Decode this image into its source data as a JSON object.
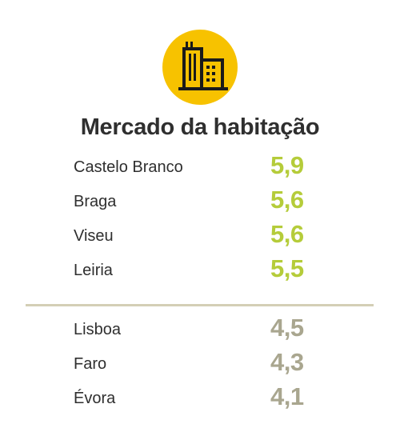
{
  "title": "Mercado da habitação",
  "colors": {
    "badge": "#f7c200",
    "icon": "#1a1a1a",
    "top_values": "#b5cc3a",
    "bottom_values": "#a9a68f",
    "divider": "#d4cfb6"
  },
  "icon": "buildings-icon",
  "top_group": [
    {
      "name": "Castelo Branco",
      "value": "5,9"
    },
    {
      "name": "Braga",
      "value": "5,6"
    },
    {
      "name": "Viseu",
      "value": "5,6"
    },
    {
      "name": "Leiria",
      "value": "5,5"
    }
  ],
  "bottom_group": [
    {
      "name": "Lisboa",
      "value": "4,5"
    },
    {
      "name": "Faro",
      "value": "4,3"
    },
    {
      "name": "Évora",
      "value": "4,1"
    }
  ]
}
